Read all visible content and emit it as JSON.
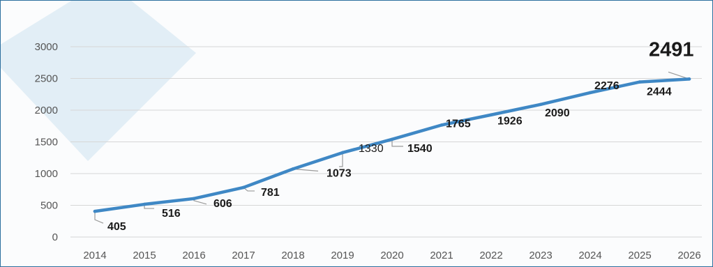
{
  "chart_data": {
    "type": "line",
    "title": "",
    "xlabel": "",
    "ylabel": "",
    "x": [
      "2014",
      "2015",
      "2016",
      "2017",
      "2018",
      "2019",
      "2020",
      "2021",
      "2022",
      "2023",
      "2024",
      "2025",
      "2026"
    ],
    "values": [
      405,
      516,
      606,
      781,
      1073,
      1330,
      1540,
      1765,
      1926,
      2090,
      2276,
      2444,
      2491
    ],
    "data_labels": [
      "405",
      "516",
      "606",
      "781",
      "1073",
      "1330",
      "1540",
      "1765",
      "1926",
      "2090",
      "2276",
      "2444",
      "2491"
    ],
    "ylim": [
      0,
      3000
    ],
    "yticks": [
      "0",
      "500",
      "1000",
      "1500",
      "2000",
      "2500",
      "3000"
    ],
    "grid": true,
    "legend": "none",
    "colors": {
      "line": "#3f88c5",
      "grid": "#d6d6d6",
      "leader": "#9a9a9a",
      "background_shape": "#d9eaf3",
      "frame": "#2c6f9e"
    }
  }
}
